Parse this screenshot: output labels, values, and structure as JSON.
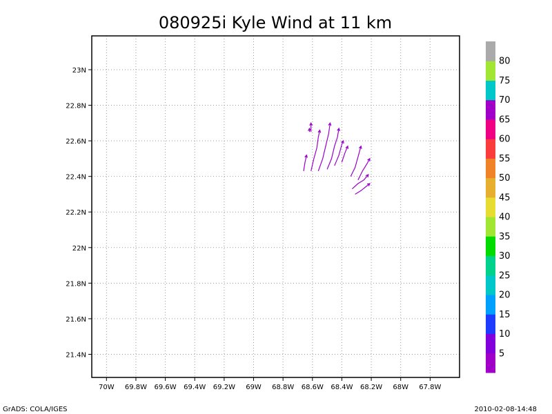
{
  "chart_data": {
    "type": "vector-field",
    "title": "080925i Kyle Wind at 11 km",
    "xlim": [
      -70.1,
      -67.6
    ],
    "ylim": [
      21.27,
      23.19
    ],
    "x_ticks": [
      {
        "value": -70.0,
        "label": "70W"
      },
      {
        "value": -69.8,
        "label": "69.8W"
      },
      {
        "value": -69.6,
        "label": "69.6W"
      },
      {
        "value": -69.4,
        "label": "69.4W"
      },
      {
        "value": -69.2,
        "label": "69.2W"
      },
      {
        "value": -69.0,
        "label": "69W"
      },
      {
        "value": -68.8,
        "label": "68.8W"
      },
      {
        "value": -68.6,
        "label": "68.6W"
      },
      {
        "value": -68.4,
        "label": "68.4W"
      },
      {
        "value": -68.2,
        "label": "68.2W"
      },
      {
        "value": -68.0,
        "label": "68W"
      },
      {
        "value": -67.8,
        "label": "67.8W"
      }
    ],
    "y_ticks": [
      {
        "value": 21.4,
        "label": "21.4N"
      },
      {
        "value": 21.6,
        "label": "21.6N"
      },
      {
        "value": 21.8,
        "label": "21.8N"
      },
      {
        "value": 22.0,
        "label": "22N"
      },
      {
        "value": 22.2,
        "label": "22.2N"
      },
      {
        "value": 22.4,
        "label": "22.4N"
      },
      {
        "value": 22.6,
        "label": "22.6N"
      },
      {
        "value": 22.8,
        "label": "22.8N"
      },
      {
        "value": 23.0,
        "label": "23N"
      }
    ],
    "grid": true,
    "vector_color": "#9900cc",
    "streaks": [
      [
        [
          -68.66,
          22.43
        ],
        [
          -68.65,
          22.48
        ],
        [
          -68.64,
          22.52
        ]
      ],
      [
        [
          -68.61,
          22.65
        ],
        [
          -68.61,
          22.67
        ],
        [
          -68.61,
          22.7
        ]
      ],
      [
        [
          -68.62,
          22.65
        ],
        [
          -68.62,
          22.67
        ]
      ],
      [
        [
          -68.61,
          22.43
        ],
        [
          -68.59,
          22.5
        ],
        [
          -68.57,
          22.56
        ],
        [
          -68.56,
          22.62
        ],
        [
          -68.55,
          22.66
        ]
      ],
      [
        [
          -68.56,
          22.43
        ],
        [
          -68.53,
          22.5
        ],
        [
          -68.51,
          22.57
        ],
        [
          -68.49,
          22.64
        ],
        [
          -68.48,
          22.7
        ]
      ],
      [
        [
          -68.5,
          22.44
        ],
        [
          -68.47,
          22.5
        ],
        [
          -68.45,
          22.57
        ],
        [
          -68.43,
          22.62
        ],
        [
          -68.42,
          22.67
        ]
      ],
      [
        [
          -68.45,
          22.46
        ],
        [
          -68.42,
          22.52
        ],
        [
          -68.4,
          22.58
        ],
        [
          -68.39,
          22.6
        ]
      ],
      [
        [
          -68.4,
          22.48
        ],
        [
          -68.38,
          22.53
        ],
        [
          -68.36,
          22.57
        ]
      ],
      [
        [
          -68.34,
          22.4
        ],
        [
          -68.31,
          22.45
        ],
        [
          -68.29,
          22.51
        ],
        [
          -68.27,
          22.57
        ]
      ],
      [
        [
          -68.29,
          22.38
        ],
        [
          -68.26,
          22.43
        ],
        [
          -68.23,
          22.47
        ],
        [
          -68.21,
          22.5
        ]
      ],
      [
        [
          -68.33,
          22.33
        ],
        [
          -68.29,
          22.36
        ],
        [
          -68.25,
          22.38
        ],
        [
          -68.22,
          22.41
        ]
      ],
      [
        [
          -68.31,
          22.3
        ],
        [
          -68.27,
          22.32
        ],
        [
          -68.24,
          22.34
        ],
        [
          -68.21,
          22.36
        ]
      ]
    ],
    "colorbar": {
      "bins": [
        {
          "color": "#a000c8"
        },
        {
          "color": "#8200dc"
        },
        {
          "color": "#1e3cff"
        },
        {
          "color": "#00a0ff"
        },
        {
          "color": "#00c8c8"
        },
        {
          "color": "#00d28c"
        },
        {
          "color": "#00dc00"
        },
        {
          "color": "#a0e632"
        },
        {
          "color": "#e6dc32"
        },
        {
          "color": "#e6af2d"
        },
        {
          "color": "#f08228"
        },
        {
          "color": "#fa3c3c"
        },
        {
          "color": "#f00082"
        },
        {
          "color": "#a000c8"
        },
        {
          "color": "#00c8c8"
        },
        {
          "color": "#a0e632"
        },
        {
          "color": "#aaaaaa"
        }
      ],
      "labels": [
        "5",
        "10",
        "15",
        "20",
        "25",
        "30",
        "35",
        "40",
        "45",
        "50",
        "55",
        "60",
        "65",
        "70",
        "75",
        "80"
      ]
    }
  },
  "footer": {
    "left": "GrADS: COLA/IGES",
    "right": "2010-02-08-14:48"
  }
}
